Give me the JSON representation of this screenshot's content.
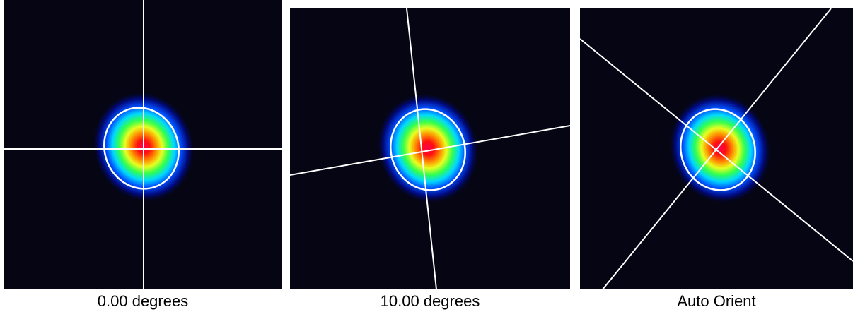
{
  "panels": [
    {
      "caption": "0.00 degrees"
    },
    {
      "caption": "10.00 degrees"
    },
    {
      "caption": "Auto Orient"
    }
  ]
}
